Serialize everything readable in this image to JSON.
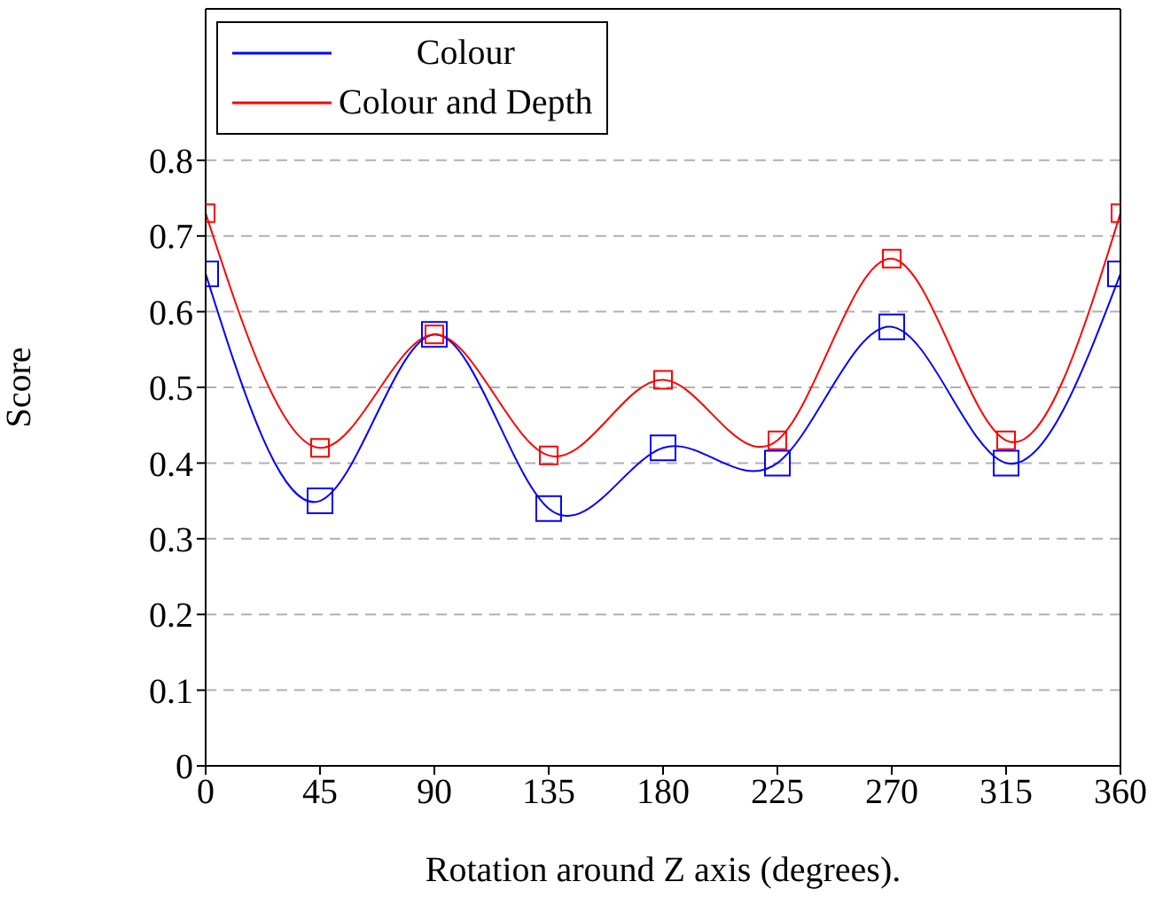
{
  "chart_data": {
    "type": "line",
    "xlabel": "Rotation around Z axis (degrees).",
    "ylabel": "Score",
    "x": [
      0,
      45,
      90,
      135,
      180,
      225,
      270,
      315,
      360
    ],
    "xlim": [
      0,
      360
    ],
    "xticks": [
      0,
      45,
      90,
      135,
      180,
      225,
      270,
      315,
      360
    ],
    "ylim": [
      0,
      1
    ],
    "yticks": [
      0,
      0.1,
      0.2,
      0.3,
      0.4,
      0.5,
      0.6,
      0.7,
      0.8
    ],
    "grid": "y",
    "legend": "top left",
    "marker": "square",
    "line_style": "solid",
    "series": [
      {
        "name": "Colour",
        "color": "#0000ff",
        "values": [
          0.65,
          0.35,
          0.57,
          0.34,
          0.42,
          0.4,
          0.58,
          0.4,
          0.65
        ]
      },
      {
        "name": "Colour and Depth",
        "color": "#ff0000",
        "values": [
          0.73,
          0.42,
          0.57,
          0.41,
          0.51,
          0.43,
          0.67,
          0.43,
          0.73
        ]
      }
    ]
  }
}
